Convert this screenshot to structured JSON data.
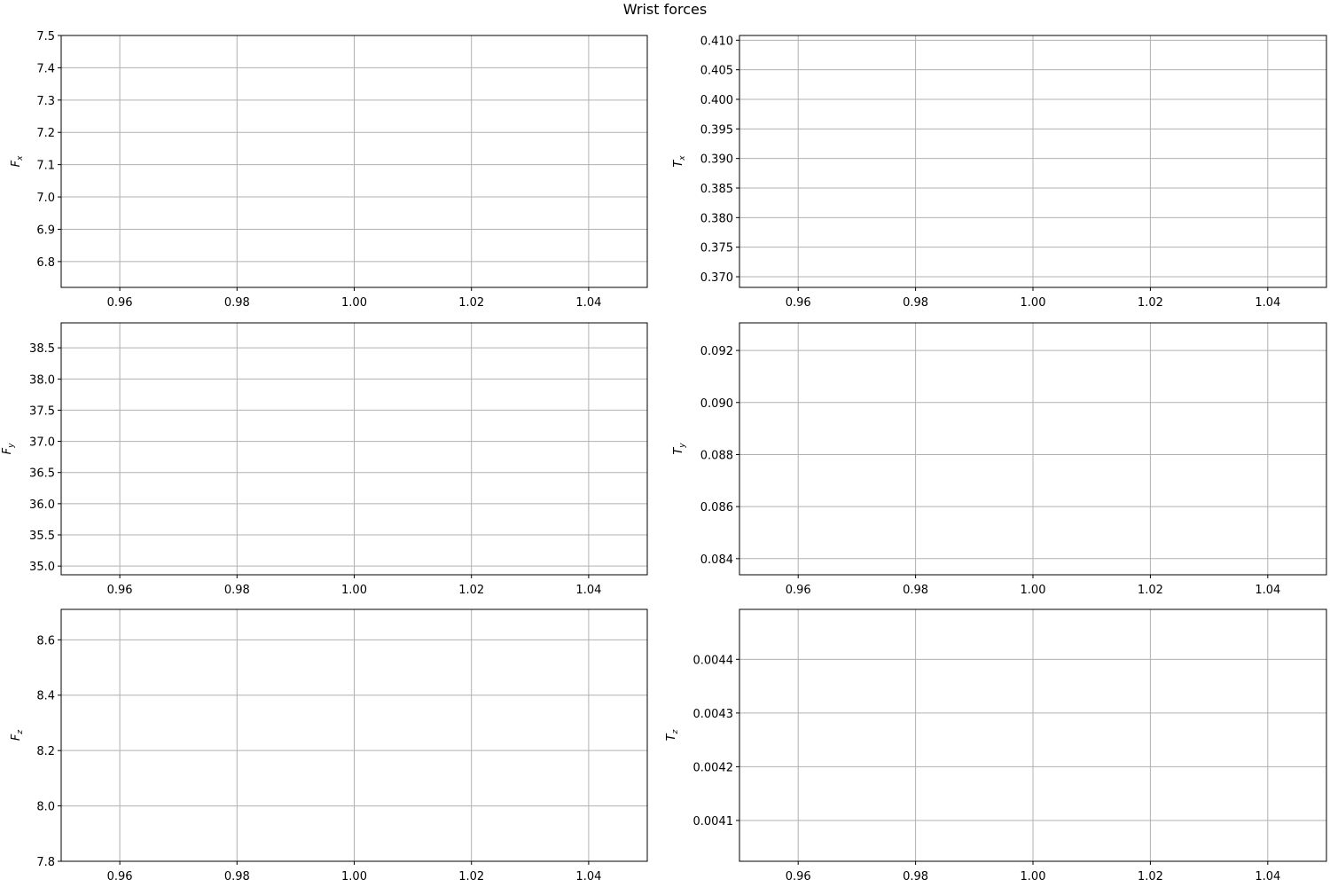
{
  "figure": {
    "title": "Wrist forces"
  },
  "chart_data": [
    {
      "type": "line",
      "ylabel_base": "F",
      "ylabel_sub": "x",
      "xlim": [
        0.95,
        1.05
      ],
      "ylim": [
        6.72,
        7.5
      ],
      "xticks": [
        0.96,
        0.98,
        1.0,
        1.02,
        1.04
      ],
      "xtick_labels": [
        "0.96",
        "0.98",
        "1.00",
        "1.02",
        "1.04"
      ],
      "yticks": [
        6.8,
        6.9,
        7.0,
        7.1,
        7.2,
        7.3,
        7.4,
        7.5
      ],
      "ytick_labels": [
        "6.8",
        "6.9",
        "7.0",
        "7.1",
        "7.2",
        "7.3",
        "7.4",
        "7.5"
      ],
      "grid": true,
      "series": []
    },
    {
      "type": "line",
      "ylabel_base": "T",
      "ylabel_sub": "x",
      "xlim": [
        0.95,
        1.05
      ],
      "ylim": [
        0.3682,
        0.4108
      ],
      "xticks": [
        0.96,
        0.98,
        1.0,
        1.02,
        1.04
      ],
      "xtick_labels": [
        "0.96",
        "0.98",
        "1.00",
        "1.02",
        "1.04"
      ],
      "yticks": [
        0.37,
        0.375,
        0.38,
        0.385,
        0.39,
        0.395,
        0.4,
        0.405,
        0.41
      ],
      "ytick_labels": [
        "0.370",
        "0.375",
        "0.380",
        "0.385",
        "0.390",
        "0.395",
        "0.400",
        "0.405",
        "0.410"
      ],
      "grid": true,
      "series": []
    },
    {
      "type": "line",
      "ylabel_base": "F",
      "ylabel_sub": "y",
      "xlim": [
        0.95,
        1.05
      ],
      "ylim": [
        34.86,
        38.9
      ],
      "xticks": [
        0.96,
        0.98,
        1.0,
        1.02,
        1.04
      ],
      "xtick_labels": [
        "0.96",
        "0.98",
        "1.00",
        "1.02",
        "1.04"
      ],
      "yticks": [
        35.0,
        35.5,
        36.0,
        36.5,
        37.0,
        37.5,
        38.0,
        38.5
      ],
      "ytick_labels": [
        "35.0",
        "35.5",
        "36.0",
        "36.5",
        "37.0",
        "37.5",
        "38.0",
        "38.5"
      ],
      "grid": true,
      "series": []
    },
    {
      "type": "line",
      "ylabel_base": "T",
      "ylabel_sub": "y",
      "xlim": [
        0.95,
        1.05
      ],
      "ylim": [
        0.08338,
        0.09306
      ],
      "xticks": [
        0.96,
        0.98,
        1.0,
        1.02,
        1.04
      ],
      "xtick_labels": [
        "0.96",
        "0.98",
        "1.00",
        "1.02",
        "1.04"
      ],
      "yticks": [
        0.084,
        0.086,
        0.088,
        0.09,
        0.092
      ],
      "ytick_labels": [
        "0.084",
        "0.086",
        "0.088",
        "0.090",
        "0.092"
      ],
      "grid": true,
      "series": []
    },
    {
      "type": "line",
      "ylabel_base": "F",
      "ylabel_sub": "z",
      "xlim": [
        0.95,
        1.05
      ],
      "ylim": [
        7.8,
        8.71
      ],
      "xticks": [
        0.96,
        0.98,
        1.0,
        1.02,
        1.04
      ],
      "xtick_labels": [
        "0.96",
        "0.98",
        "1.00",
        "1.02",
        "1.04"
      ],
      "yticks": [
        7.8,
        8.0,
        8.2,
        8.4,
        8.6
      ],
      "ytick_labels": [
        "7.8",
        "8.0",
        "8.2",
        "8.4",
        "8.6"
      ],
      "grid": true,
      "series": []
    },
    {
      "type": "line",
      "ylabel_base": "T",
      "ylabel_sub": "z",
      "xlim": [
        0.95,
        1.05
      ],
      "ylim": [
        0.004024,
        0.004493
      ],
      "xticks": [
        0.96,
        0.98,
        1.0,
        1.02,
        1.04
      ],
      "xtick_labels": [
        "0.96",
        "0.98",
        "1.00",
        "1.02",
        "1.04"
      ],
      "yticks": [
        0.0041,
        0.0042,
        0.0043,
        0.0044
      ],
      "ytick_labels": [
        "0.0041",
        "0.0042",
        "0.0043",
        "0.0044"
      ],
      "grid": true,
      "series": []
    }
  ]
}
